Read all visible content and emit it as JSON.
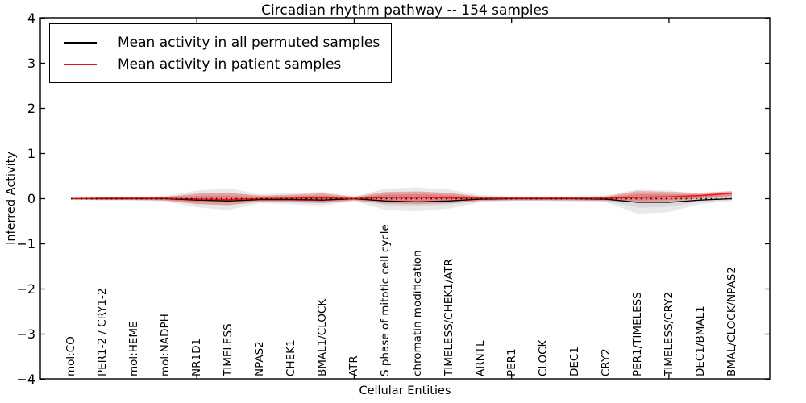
{
  "title": "Circadian rhythm pathway -- 154 samples",
  "xlabel": "Cellular Entities",
  "ylabel": "Inferred Activity",
  "legend": {
    "items": [
      {
        "label": "Mean activity in all permuted samples",
        "color": "#000000"
      },
      {
        "label": "Mean activity in patient samples",
        "color": "#ee1111"
      }
    ]
  },
  "colors": {
    "permuted_line": "#000000",
    "patient_line": "#ee1111",
    "permuted_band": "#787878",
    "patient_band": "#e85050",
    "zero_line": "#000000",
    "frame": "#000000"
  },
  "chart_data": {
    "type": "line",
    "title": "Circadian rhythm pathway -- 154 samples",
    "xlabel": "Cellular Entities",
    "ylabel": "Inferred Activity",
    "ylim": [
      -4,
      4
    ],
    "ytick_labels": [
      "4",
      "3",
      "2",
      "1",
      "0",
      "−1",
      "−2",
      "−3",
      "−4"
    ],
    "ytick_values": [
      4,
      3,
      2,
      1,
      0,
      -1,
      -2,
      -3,
      -4
    ],
    "xtick_indices": [
      4,
      9,
      14,
      19
    ],
    "legend_position": "upper left",
    "grid": false,
    "categories": [
      "mol:CO",
      "PER1-2 / CRY1-2",
      "mol:HEME",
      "mol:NADPH",
      "NR1D1",
      "TIMELESS",
      "NPAS2",
      "CHEK1",
      "BMAL1/CLOCK",
      "ATR",
      "S phase of mitotic cell cycle",
      "chromatin modification",
      "TIMELESS/CHEK1/ATR",
      "ARNTL",
      "PER1",
      "CLOCK",
      "DEC1",
      "CRY2",
      "PER1/TIMELESS",
      "TIMELESS/CRY2",
      "DEC1/BMAL1",
      "BMAL/CLOCK/NPAS2"
    ],
    "series": [
      {
        "name": "Mean activity in all permuted samples",
        "values": [
          0,
          0,
          0,
          0,
          -0.03,
          -0.05,
          -0.02,
          -0.02,
          -0.03,
          0,
          -0.05,
          -0.07,
          -0.05,
          -0.01,
          0,
          0,
          0,
          -0.01,
          -0.08,
          -0.08,
          -0.03,
          0
        ]
      },
      {
        "name": "Mean activity in patient samples",
        "values": [
          0,
          0.01,
          0.01,
          0.01,
          -0.01,
          -0.02,
          0,
          0.01,
          0.02,
          0,
          0.03,
          0.03,
          0.02,
          0.01,
          0.01,
          0.01,
          0.01,
          0.01,
          0.03,
          0.04,
          0.07,
          0.12
        ]
      }
    ],
    "bands": {
      "permuted_outer_hi": [
        0.02,
        0.04,
        0.04,
        0.06,
        0.18,
        0.23,
        0.1,
        0.12,
        0.15,
        0.05,
        0.22,
        0.25,
        0.2,
        0.08,
        0.05,
        0.05,
        0.05,
        0.07,
        0.2,
        0.18,
        0.1,
        0.08
      ],
      "permuted_outer_lo": [
        -0.02,
        -0.04,
        -0.04,
        -0.06,
        -0.19,
        -0.25,
        -0.1,
        -0.12,
        -0.15,
        -0.05,
        -0.25,
        -0.28,
        -0.22,
        -0.08,
        -0.05,
        -0.05,
        -0.06,
        -0.08,
        -0.33,
        -0.3,
        -0.12,
        -0.05
      ],
      "permuted_inner_hi": [
        0.01,
        0.02,
        0.02,
        0.04,
        0.11,
        0.14,
        0.06,
        0.07,
        0.09,
        0.03,
        0.13,
        0.15,
        0.12,
        0.05,
        0.03,
        0.03,
        0.03,
        0.04,
        0.12,
        0.11,
        0.06,
        0.05
      ],
      "permuted_inner_lo": [
        -0.01,
        -0.02,
        -0.02,
        -0.04,
        -0.11,
        -0.15,
        -0.06,
        -0.07,
        -0.09,
        -0.03,
        -0.15,
        -0.17,
        -0.13,
        -0.05,
        -0.03,
        -0.03,
        -0.04,
        -0.05,
        -0.2,
        -0.18,
        -0.07,
        -0.03
      ],
      "patient_outer_hi": [
        0.015,
        0.03,
        0.03,
        0.04,
        0.11,
        0.13,
        0.07,
        0.09,
        0.12,
        0.04,
        0.15,
        0.16,
        0.13,
        0.05,
        0.04,
        0.04,
        0.04,
        0.05,
        0.17,
        0.15,
        0.13,
        0.17
      ],
      "patient_outer_lo": [
        -0.015,
        -0.03,
        -0.03,
        -0.04,
        -0.12,
        -0.14,
        -0.07,
        -0.08,
        -0.1,
        -0.04,
        -0.11,
        -0.12,
        -0.1,
        -0.05,
        -0.04,
        -0.04,
        -0.04,
        -0.05,
        -0.08,
        -0.07,
        0.0,
        0.05
      ],
      "patient_inner_hi": [
        0.01,
        0.02,
        0.02,
        0.03,
        0.06,
        0.07,
        0.04,
        0.05,
        0.07,
        0.025,
        0.09,
        0.1,
        0.08,
        0.03,
        0.025,
        0.025,
        0.025,
        0.03,
        0.1,
        0.09,
        0.1,
        0.15
      ],
      "patient_inner_lo": [
        -0.01,
        -0.02,
        -0.02,
        -0.03,
        -0.07,
        -0.08,
        -0.04,
        -0.05,
        -0.06,
        -0.025,
        -0.06,
        -0.07,
        -0.06,
        -0.03,
        -0.025,
        -0.025,
        -0.025,
        -0.03,
        -0.04,
        -0.03,
        0.02,
        0.07
      ],
      "zero_reference": 0
    }
  }
}
